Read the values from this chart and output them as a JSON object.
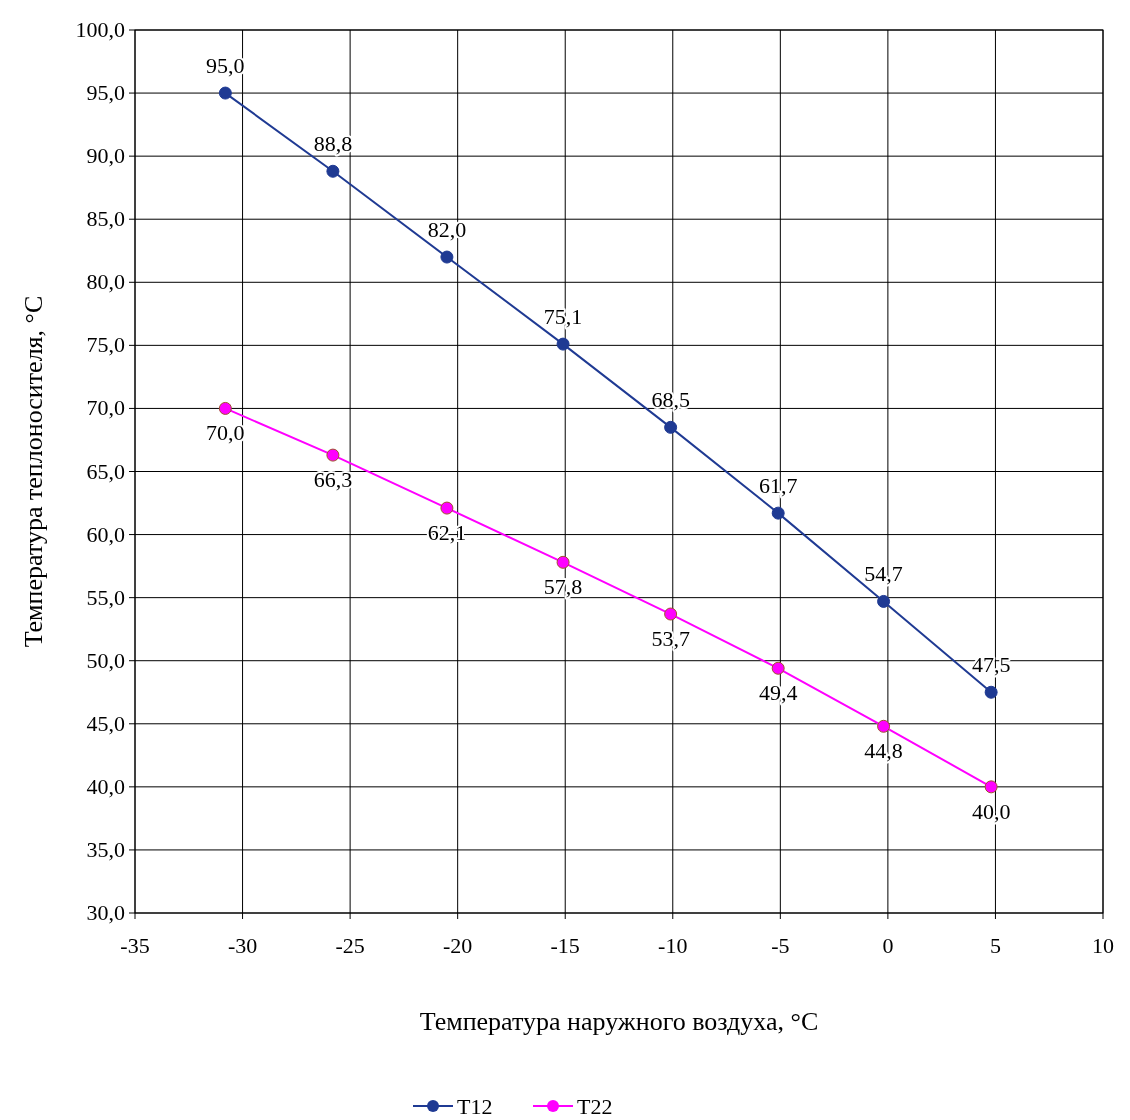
{
  "chart_data": {
    "type": "line",
    "xlabel": "Температура наружного воздуха, °С",
    "ylabel": "Температура теплоносителя, °С",
    "x": [
      -30.8,
      -25.8,
      -20.5,
      -15.1,
      -10.1,
      -5.1,
      -0.2,
      4.8
    ],
    "series": [
      {
        "name": "Т12",
        "color": "#1f3a93",
        "values": [
          95.0,
          88.8,
          82.0,
          75.1,
          68.5,
          61.7,
          54.7,
          47.5
        ],
        "value_labels": [
          "95,0",
          "88,8",
          "82,0",
          "75,1",
          "68,5",
          "61,7",
          "54,7",
          "47,5"
        ]
      },
      {
        "name": "Т22",
        "color": "#ff00ff",
        "values": [
          70.0,
          66.3,
          62.1,
          57.8,
          53.7,
          49.4,
          44.8,
          40.0
        ],
        "value_labels": [
          "70,0",
          "66,3",
          "62,1",
          "57,8",
          "53,7",
          "49,4",
          "44,8",
          "40,0"
        ]
      }
    ],
    "xlim": [
      -35,
      10
    ],
    "xticks": [
      -35,
      -30,
      -25,
      -20,
      -15,
      -10,
      -5,
      0,
      5,
      10
    ],
    "ylim": [
      30,
      100
    ],
    "yticks": [
      {
        "value": 30,
        "label": "30,0"
      },
      {
        "value": 35,
        "label": "35,0"
      },
      {
        "value": 40,
        "label": "40,0"
      },
      {
        "value": 45,
        "label": "45,0"
      },
      {
        "value": 50,
        "label": "50,0"
      },
      {
        "value": 55,
        "label": "55,0"
      },
      {
        "value": 60,
        "label": "60,0"
      },
      {
        "value": 65,
        "label": "65,0"
      },
      {
        "value": 70,
        "label": "70,0"
      },
      {
        "value": 75,
        "label": "75,0"
      },
      {
        "value": 80,
        "label": "80,0"
      },
      {
        "value": 85,
        "label": "85,0"
      },
      {
        "value": 90,
        "label": "90,0"
      },
      {
        "value": 95,
        "label": "95,0"
      },
      {
        "value": 100,
        "label": "100,0"
      }
    ],
    "grid": true,
    "legend": "bottom",
    "marker": "circle",
    "line_style": "solid"
  }
}
